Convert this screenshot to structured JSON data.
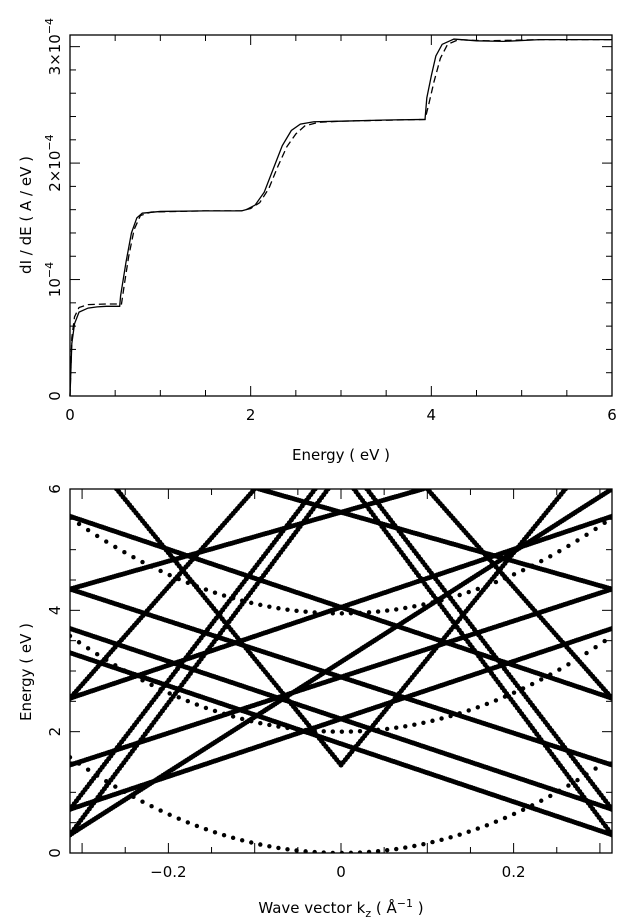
{
  "chart_data": [
    {
      "type": "line",
      "xlabel": "Energy ( eV )",
      "ylabel": "dI / dE ( A / eV )",
      "xlim": [
        0,
        6
      ],
      "ylim": [
        0,
        0.00031
      ],
      "x_ticks": [
        "0",
        "2",
        "4",
        "6"
      ],
      "y_ticks": [
        {
          "value": 0,
          "label": "0"
        },
        {
          "value": 0.0001,
          "label": "10",
          "exp": "−4"
        },
        {
          "value": 0.0002,
          "label": "2×10",
          "exp": "−4"
        },
        {
          "value": 0.0003,
          "label": "3×10",
          "exp": "−4"
        }
      ],
      "grid": false,
      "series": [
        {
          "style": "solid",
          "points": [
            [
              0,
              0
            ],
            [
              0.02,
              4.5e-05
            ],
            [
              0.05,
              6.2e-05
            ],
            [
              0.1,
              7.2e-05
            ],
            [
              0.2,
              7.55e-05
            ],
            [
              0.3,
              7.65e-05
            ],
            [
              0.4,
              7.7e-05
            ],
            [
              0.55,
              7.7e-05
            ],
            [
              0.56,
              8.6e-05
            ],
            [
              0.62,
              0.000115
            ],
            [
              0.68,
              0.00014
            ],
            [
              0.74,
              0.000153
            ],
            [
              0.8,
              0.000157
            ],
            [
              1.0,
              0.0001585
            ],
            [
              1.5,
              0.000159
            ],
            [
              1.9,
              0.000159
            ],
            [
              1.95,
              0.00016
            ],
            [
              2.05,
              0.000164
            ],
            [
              2.15,
              0.000175
            ],
            [
              2.25,
              0.000195
            ],
            [
              2.35,
              0.000215
            ],
            [
              2.45,
              0.000228
            ],
            [
              2.55,
              0.0002335
            ],
            [
              2.7,
              0.0002355
            ],
            [
              3.0,
              0.000236
            ],
            [
              3.5,
              0.000237
            ],
            [
              3.93,
              0.0002375
            ],
            [
              3.95,
              0.000256
            ],
            [
              4.0,
              0.000275
            ],
            [
              4.05,
              0.000292
            ],
            [
              4.12,
              0.000302
            ],
            [
              4.25,
              0.0003065
            ],
            [
              4.5,
              0.000305
            ],
            [
              4.8,
              0.0003045
            ],
            [
              5.2,
              0.000306
            ],
            [
              6.0,
              0.000306
            ]
          ]
        },
        {
          "style": "dashed",
          "points": [
            [
              0,
              0
            ],
            [
              0.02,
              5e-05
            ],
            [
              0.05,
              6.8e-05
            ],
            [
              0.1,
              7.6e-05
            ],
            [
              0.2,
              7.85e-05
            ],
            [
              0.4,
              7.9e-05
            ],
            [
              0.57,
              7.9e-05
            ],
            [
              0.6,
              9.5e-05
            ],
            [
              0.65,
              0.00012
            ],
            [
              0.71,
              0.000143
            ],
            [
              0.78,
              0.000155
            ],
            [
              0.9,
              0.000158
            ],
            [
              1.5,
              0.000159
            ],
            [
              1.9,
              0.000159
            ],
            [
              2.0,
              0.000161
            ],
            [
              2.1,
              0.000166
            ],
            [
              2.2,
              0.000178
            ],
            [
              2.3,
              0.000197
            ],
            [
              2.4,
              0.000214
            ],
            [
              2.5,
              0.000225
            ],
            [
              2.6,
              0.000232
            ],
            [
              2.75,
              0.000235
            ],
            [
              3.0,
              0.000236
            ],
            [
              3.93,
              0.0002375
            ],
            [
              3.97,
              0.00025
            ],
            [
              4.03,
              0.00027
            ],
            [
              4.1,
              0.00029
            ],
            [
              4.18,
              0.000302
            ],
            [
              4.3,
              0.000306
            ],
            [
              4.6,
              0.000305
            ],
            [
              5.2,
              0.000306
            ],
            [
              6.0,
              0.000306
            ]
          ]
        }
      ]
    },
    {
      "type": "scatter",
      "xlabel": "Wave vector k",
      "xlabel_sub": "z",
      "xlabel_unit": "( Å",
      "xlabel_unit_exp": "−1",
      "xlabel_close": " )",
      "ylabel": "Energy ( eV )",
      "xlim": [
        -0.314,
        0.314
      ],
      "ylim": [
        0,
        6
      ],
      "x_ticks": [
        {
          "value": -0.2,
          "label": "−0.2"
        },
        {
          "value": 0,
          "label": "0"
        },
        {
          "value": 0.2,
          "label": "0.2"
        }
      ],
      "y_ticks": [
        {
          "value": 0,
          "label": "0"
        },
        {
          "value": 2,
          "label": "2"
        },
        {
          "value": 4,
          "label": "4"
        },
        {
          "value": 6,
          "label": "6"
        }
      ],
      "grid": false,
      "parabolic_bands": [
        {
          "min_energy": 0.0,
          "effective_coeff": 16.0
        },
        {
          "min_energy": 2.0,
          "effective_coeff": 16.0
        },
        {
          "min_energy": 3.95,
          "effective_coeff": 16.0
        }
      ],
      "linear_bands": [
        {
          "x": [
            -0.314,
            0.314
          ],
          "y": [
            0.3,
            6.0
          ]
        },
        {
          "x": [
            -0.314,
            0.314
          ],
          "y": [
            0.72,
            3.7
          ]
        },
        {
          "x": [
            -0.314,
            0.314
          ],
          "y": [
            2.55,
            5.55
          ]
        },
        {
          "x": [
            -0.314,
            0.314
          ],
          "y": [
            3.7,
            0.72
          ]
        },
        {
          "x": [
            -0.314,
            0.314
          ],
          "y": [
            3.3,
            0.3
          ]
        },
        {
          "x": [
            -0.314,
            0.314
          ],
          "y": [
            4.35,
            1.45
          ]
        },
        {
          "x": [
            -0.314,
            0.314
          ],
          "y": [
            5.55,
            2.55
          ]
        },
        {
          "x": [
            -0.314,
            -0.1
          ],
          "y": [
            2.55,
            6.0
          ]
        },
        {
          "x": [
            -0.314,
            -0.03
          ],
          "y": [
            0.72,
            6.0
          ]
        },
        {
          "x": [
            -0.314,
            -0.015
          ],
          "y": [
            0.3,
            6.0
          ]
        },
        {
          "x": [
            -0.314,
            0.095
          ],
          "y": [
            4.35,
            6.0
          ]
        },
        {
          "x": [
            -0.26,
            0.0
          ],
          "y": [
            6.0,
            1.45
          ]
        },
        {
          "x": [
            0.0,
            0.26
          ],
          "y": [
            1.45,
            6.0
          ]
        },
        {
          "x": [
            0.1,
            0.314
          ],
          "y": [
            6.0,
            2.55
          ]
        },
        {
          "x": [
            0.03,
            0.314
          ],
          "y": [
            6.0,
            0.72
          ]
        },
        {
          "x": [
            0.015,
            0.314
          ],
          "y": [
            6.0,
            0.3
          ]
        },
        {
          "x": [
            -0.095,
            0.314
          ],
          "y": [
            6.0,
            4.35
          ]
        },
        {
          "x": [
            -0.314,
            0.314
          ],
          "y": [
            1.45,
            4.35
          ]
        }
      ]
    }
  ]
}
